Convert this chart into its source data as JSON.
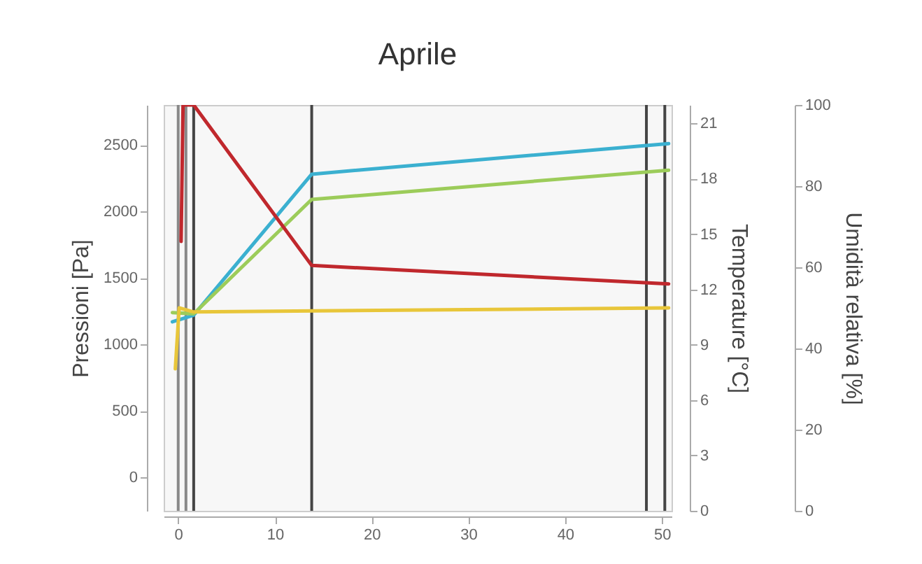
{
  "chart_data": {
    "type": "line",
    "title": "Aprile",
    "ylabel": "Pressioni [Pa]",
    "y2label": "Temperature [°C]",
    "y3label": "Umidità relativa [%]",
    "xlim": [
      -1.5,
      51
    ],
    "xticks": [
      0,
      10,
      20,
      30,
      40,
      50
    ],
    "ylim": [
      -250,
      2800
    ],
    "yticks": [
      0,
      500,
      1000,
      1500,
      2000,
      2500
    ],
    "y2lim": [
      0,
      22
    ],
    "y2ticks": [
      0,
      3,
      6,
      9,
      12,
      15,
      18,
      21
    ],
    "y3lim": [
      0,
      100
    ],
    "y3ticks": [
      0,
      20,
      40,
      60,
      80,
      100
    ],
    "series": [
      {
        "color": "#3bb0d0",
        "x": [
          -0.6,
          1.6,
          13.8,
          50.7
        ],
        "values": [
          1170,
          1220,
          2280,
          2510
        ]
      },
      {
        "color": "#9ccc5a",
        "x": [
          -0.6,
          1.6,
          13.8,
          50.7
        ],
        "values": [
          1240,
          1230,
          2090,
          2310
        ]
      },
      {
        "color": "#c0282d",
        "axis": "y2",
        "x": [
          0.3,
          0.5,
          1.6,
          13.8,
          50.7
        ],
        "values": [
          14.6,
          22,
          22,
          13.3,
          12.3
        ]
      },
      {
        "color": "#e8c63a",
        "axis": "y3",
        "x": [
          -0.3,
          0.1,
          1.6,
          50.7
        ],
        "values": [
          35,
          50,
          49,
          50
        ]
      }
    ],
    "ref_lines": [
      {
        "axis": "x",
        "value": 0,
        "color": "#888888"
      },
      {
        "axis": "x",
        "value": 0.8,
        "color": "#888888"
      },
      {
        "axis": "x",
        "value": 1.6,
        "color": "#444444"
      },
      {
        "axis": "x",
        "value": 13.8,
        "color": "#444444"
      },
      {
        "axis": "x",
        "value": 48.4,
        "color": "#444444"
      },
      {
        "axis": "x",
        "value": 50.3,
        "color": "#444444"
      }
    ],
    "grid": false
  }
}
